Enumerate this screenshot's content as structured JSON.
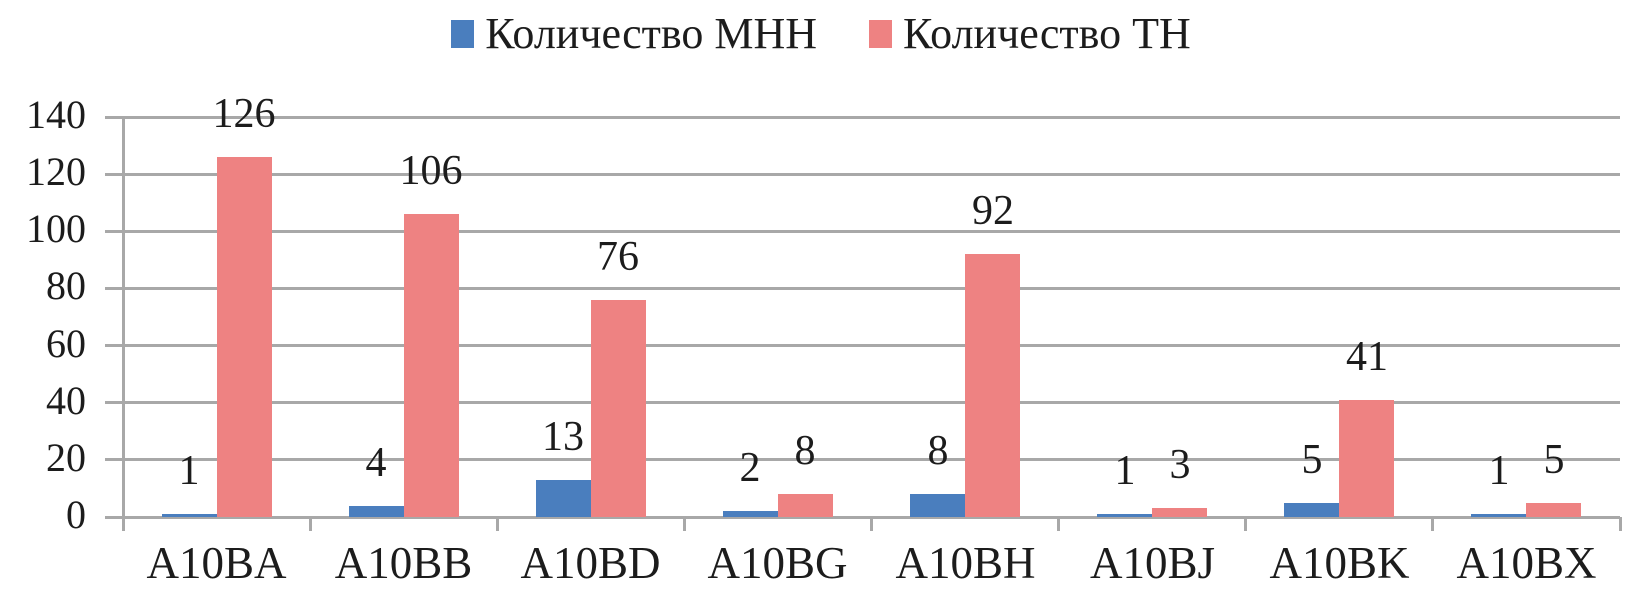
{
  "chart_data": {
    "type": "bar",
    "categories": [
      "A10BA",
      "A10BB",
      "A10BD",
      "A10BG",
      "A10BH",
      "A10BJ",
      "A10BK",
      "A10BX"
    ],
    "series": [
      {
        "name": "Количество МНН",
        "color": "#4a7ebe",
        "values": [
          1,
          4,
          13,
          2,
          8,
          1,
          5,
          1
        ]
      },
      {
        "name": "Количество ТН",
        "color": "#ee8282",
        "values": [
          126,
          106,
          76,
          8,
          92,
          3,
          41,
          5
        ]
      }
    ],
    "title": "",
    "xlabel": "",
    "ylabel": "",
    "ylim": [
      0,
      140
    ],
    "yticks": [
      0,
      20,
      40,
      60,
      80,
      100,
      120,
      140
    ],
    "grid": true,
    "legend_position": "top",
    "data_labels": "outside-end"
  },
  "colors": {
    "gridline": "#a8a8a8",
    "axis": "#a8a8a8",
    "text": "#1c1c1c",
    "background": "#ffffff"
  }
}
